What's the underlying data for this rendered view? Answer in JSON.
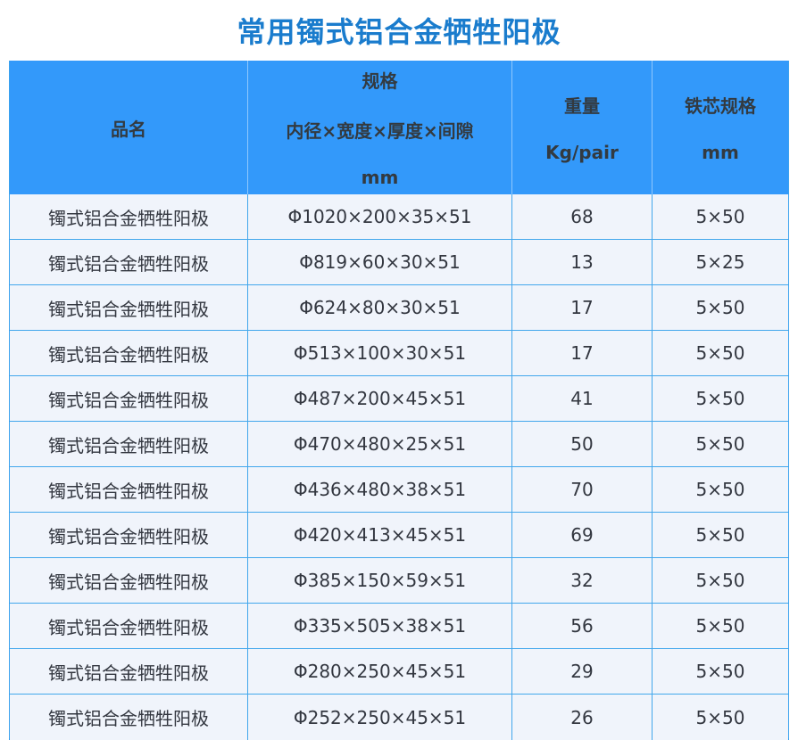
{
  "title": "常用镯式铝合金牺牲阳极",
  "colors": {
    "title_text": "#1a7ccd",
    "header_bg": "#3399fa",
    "header_text": "#333a40",
    "grid_line": "#42a7ec",
    "outer_bottom_border": "#2196f3",
    "row_bg": "#f0f4fb",
    "cell_text": "#333740"
  },
  "table": {
    "headers": {
      "product": "品名",
      "spec_line1": "规格",
      "spec_line2": "内径×宽度×厚度×间隙",
      "spec_line3": "mm",
      "weight_line1": "重量",
      "weight_line2": "Kg/pair",
      "core_line1": "铁芯规格",
      "core_line2": "mm"
    },
    "rows": [
      {
        "product": "镯式铝合金牺牲阳极",
        "spec": "Φ1020×200×35×51",
        "weight": "68",
        "core": "5×50"
      },
      {
        "product": "镯式铝合金牺牲阳极",
        "spec": "Φ819×60×30×51",
        "weight": "13",
        "core": "5×25"
      },
      {
        "product": "镯式铝合金牺牲阳极",
        "spec": "Φ624×80×30×51",
        "weight": "17",
        "core": "5×50"
      },
      {
        "product": "镯式铝合金牺牲阳极",
        "spec": "Φ513×100×30×51",
        "weight": "17",
        "core": "5×50"
      },
      {
        "product": "镯式铝合金牺牲阳极",
        "spec": "Φ487×200×45×51",
        "weight": "41",
        "core": "5×50"
      },
      {
        "product": "镯式铝合金牺牲阳极",
        "spec": "Φ470×480×25×51",
        "weight": "50",
        "core": "5×50"
      },
      {
        "product": "镯式铝合金牺牲阳极",
        "spec": "Φ436×480×38×51",
        "weight": "70",
        "core": "5×50"
      },
      {
        "product": "镯式铝合金牺牲阳极",
        "spec": "Φ420×413×45×51",
        "weight": "69",
        "core": "5×50"
      },
      {
        "product": "镯式铝合金牺牲阳极",
        "spec": "Φ385×150×59×51",
        "weight": "32",
        "core": "5×50"
      },
      {
        "product": "镯式铝合金牺牲阳极",
        "spec": "Φ335×505×38×51",
        "weight": "56",
        "core": "5×50"
      },
      {
        "product": "镯式铝合金牺牲阳极",
        "spec": "Φ280×250×45×51",
        "weight": "29",
        "core": "5×50"
      },
      {
        "product": "镯式铝合金牺牲阳极",
        "spec": "Φ252×250×45×51",
        "weight": "26",
        "core": "5×50"
      }
    ]
  },
  "chart_data": {
    "type": "table",
    "title": "常用镯式铝合金牺牲阳极",
    "columns": [
      "品名",
      "规格 内径×宽度×厚度×间隙 mm",
      "重量 Kg/pair",
      "铁芯规格 mm"
    ],
    "rows": [
      [
        "镯式铝合金牺牲阳极",
        "Φ1020×200×35×51",
        68,
        "5×50"
      ],
      [
        "镯式铝合金牺牲阳极",
        "Φ819×60×30×51",
        13,
        "5×25"
      ],
      [
        "镯式铝合金牺牲阳极",
        "Φ624×80×30×51",
        17,
        "5×50"
      ],
      [
        "镯式铝合金牺牲阳极",
        "Φ513×100×30×51",
        17,
        "5×50"
      ],
      [
        "镯式铝合金牺牲阳极",
        "Φ487×200×45×51",
        41,
        "5×50"
      ],
      [
        "镯式铝合金牺牲阳极",
        "Φ470×480×25×51",
        50,
        "5×50"
      ],
      [
        "镯式铝合金牺牲阳极",
        "Φ436×480×38×51",
        70,
        "5×50"
      ],
      [
        "镯式铝合金牺牲阳极",
        "Φ420×413×45×51",
        69,
        "5×50"
      ],
      [
        "镯式铝合金牺牲阳极",
        "Φ385×150×59×51",
        32,
        "5×50"
      ],
      [
        "镯式铝合金牺牲阳极",
        "Φ335×505×38×51",
        56,
        "5×50"
      ],
      [
        "镯式铝合金牺牲阳极",
        "Φ280×250×45×51",
        29,
        "5×50"
      ],
      [
        "镯式铝合金牺牲阳极",
        "Φ252×250×45×51",
        26,
        "5×50"
      ]
    ]
  }
}
